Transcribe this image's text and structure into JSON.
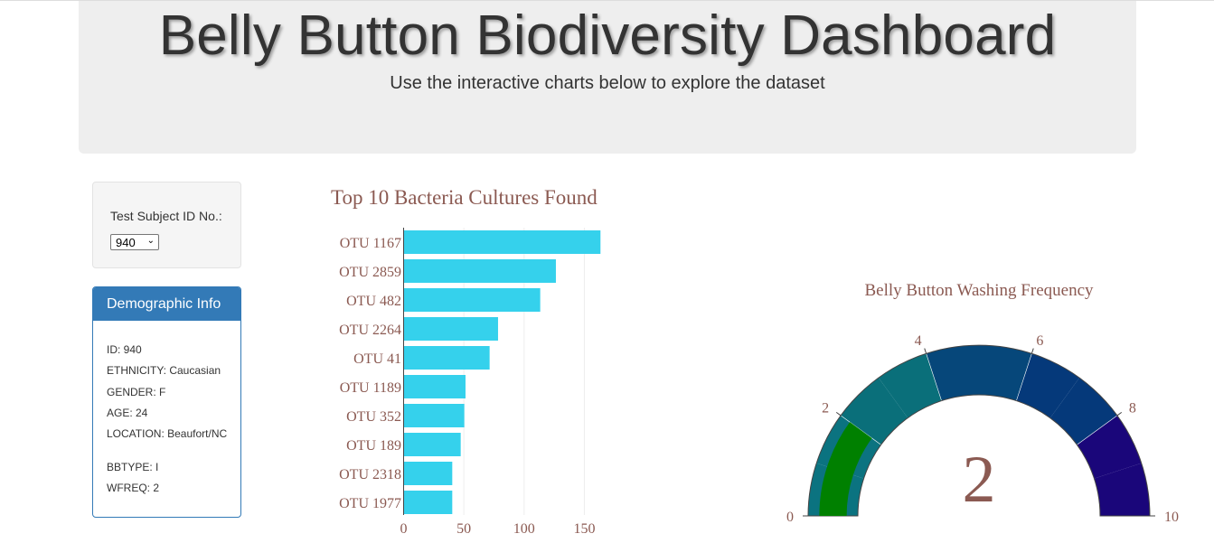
{
  "header": {
    "title": "Belly Button Biodiversity Dashboard",
    "subtitle": "Use the interactive charts below to explore the dataset"
  },
  "selector": {
    "label": "Test Subject ID No.:",
    "selected": "940"
  },
  "demographics": {
    "heading": "Demographic Info",
    "rows": [
      "ID: 940",
      "ETHNICITY: Caucasian",
      "GENDER: F",
      "AGE: 24",
      "LOCATION: Beaufort/NC",
      "BBTYPE: I",
      "WFREQ: 2"
    ]
  },
  "colors": {
    "bar": "#35d1ec",
    "chart_text": "#8b5a52",
    "panel_primary": "#337ab7",
    "gauge_steps": [
      "#0b7380",
      "#0b7380",
      "#0a6f7a",
      "#0a6f7a",
      "#06477a",
      "#06477a",
      "#05397a",
      "#05397a",
      "#1a067a",
      "#1a067a"
    ],
    "gauge_value": "#008000"
  },
  "chart_data": [
    {
      "type": "bar",
      "orientation": "horizontal",
      "title": "Top 10 Bacteria Cultures Found",
      "categories": [
        "OTU 1167",
        "OTU 2859",
        "OTU 482",
        "OTU 2264",
        "OTU 41",
        "OTU 1189",
        "OTU 352",
        "OTU 189",
        "OTU 2318",
        "OTU 1977"
      ],
      "values": [
        163,
        126,
        113,
        78,
        71,
        51,
        50,
        47,
        40,
        40
      ],
      "xlim": [
        0,
        170
      ],
      "xticks": [
        0,
        50,
        100,
        150
      ],
      "grid": true
    },
    {
      "type": "gauge",
      "title": "Belly Button Washing Frequency",
      "value": 2,
      "range": [
        0,
        10
      ],
      "ticks": [
        0,
        2,
        4,
        6,
        8,
        10
      ]
    }
  ]
}
